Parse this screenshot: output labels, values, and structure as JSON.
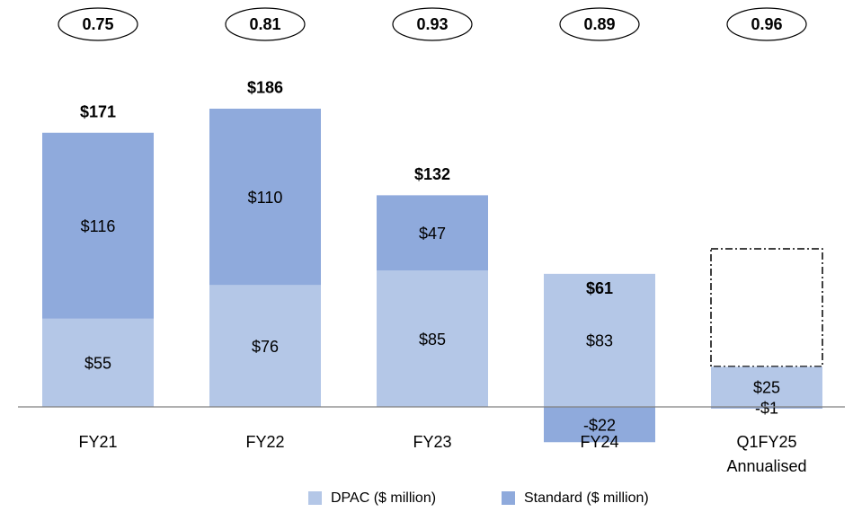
{
  "chart_data": {
    "type": "stacked_bar",
    "categories": [
      "FY21",
      "FY22",
      "FY23",
      "FY24",
      [
        "Q1FY25",
        "Annualised"
      ]
    ],
    "series": [
      {
        "name": "DPAC ($ million)",
        "color": "#b4c7e7",
        "values": [
          55,
          76,
          85,
          83,
          25
        ],
        "value_labels": [
          "$55",
          "$76",
          "$85",
          "$83",
          "$25"
        ]
      },
      {
        "name": "Standard ($ million)",
        "color": "#8faadc",
        "values": [
          116,
          110,
          47,
          -22,
          -1
        ],
        "value_labels": [
          "$116",
          "$110",
          "$47",
          "-$22",
          "-$1"
        ]
      }
    ],
    "totals": [
      171,
      186,
      132,
      61,
      null
    ],
    "total_labels": [
      "$171",
      "$186",
      "$132",
      "$61",
      null
    ],
    "ratios": [
      0.75,
      0.81,
      0.93,
      0.89,
      0.96
    ]
  }
}
